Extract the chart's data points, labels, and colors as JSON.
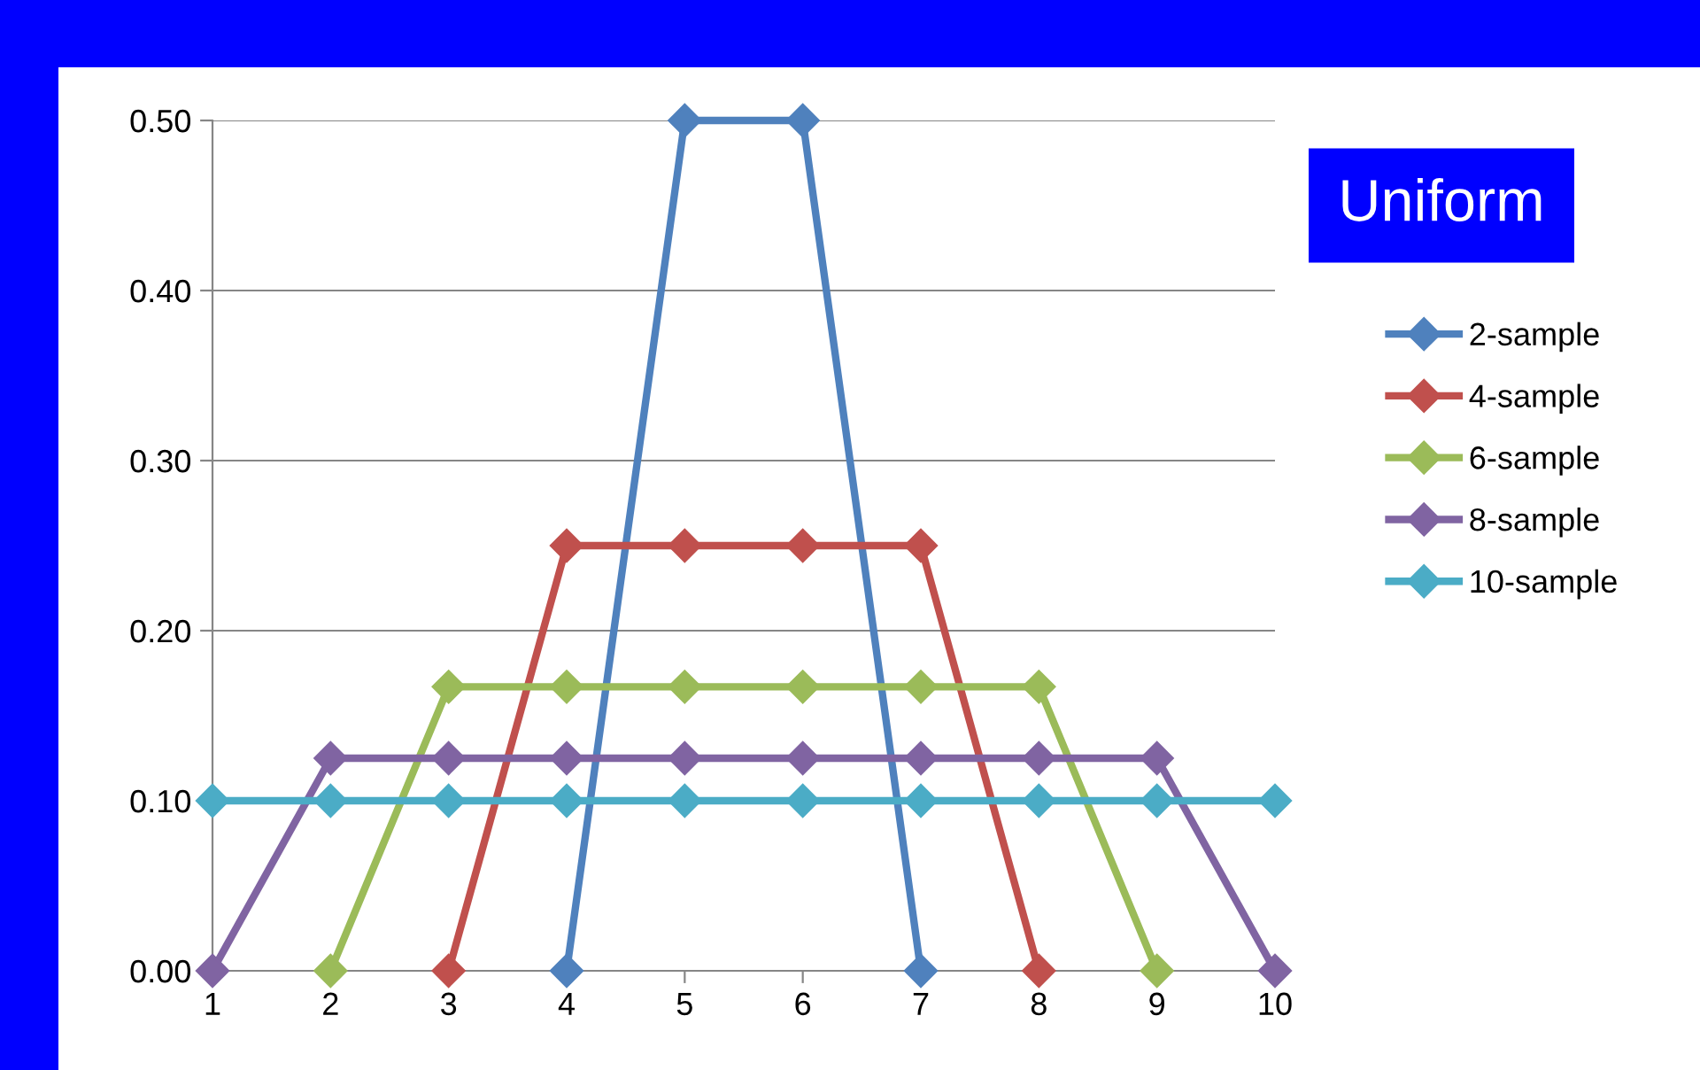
{
  "chart_data": {
    "type": "line",
    "categories": [
      "1",
      "2",
      "3",
      "4",
      "5",
      "6",
      "7",
      "8",
      "9",
      "10"
    ],
    "series": [
      {
        "name": "2-sample",
        "color": "#4f81bd",
        "values": [
          null,
          null,
          null,
          0,
          0.5,
          0.5,
          0,
          null,
          null,
          null
        ]
      },
      {
        "name": "4-sample",
        "color": "#c0504d",
        "values": [
          null,
          null,
          0,
          0.25,
          0.25,
          0.25,
          0.25,
          0,
          null,
          null
        ]
      },
      {
        "name": "6-sample",
        "color": "#9bbb59",
        "values": [
          null,
          0,
          0.167,
          0.167,
          0.167,
          0.167,
          0.167,
          0.167,
          0,
          null
        ]
      },
      {
        "name": "8-sample",
        "color": "#8064a2",
        "values": [
          0,
          0.125,
          0.125,
          0.125,
          0.125,
          0.125,
          0.125,
          0.125,
          0.125,
          0
        ]
      },
      {
        "name": "10-sample",
        "color": "#4bacc6",
        "values": [
          0.1,
          0.1,
          0.1,
          0.1,
          0.1,
          0.1,
          0.1,
          0.1,
          0.1,
          0.1
        ]
      }
    ],
    "ylim": [
      0,
      0.5
    ],
    "yticks": [
      {
        "value": 0,
        "label": "0.00"
      },
      {
        "value": 0.1,
        "label": "0.10"
      },
      {
        "value": 0.2,
        "label": "0.20"
      },
      {
        "value": 0.3,
        "label": "0.30"
      },
      {
        "value": 0.4,
        "label": "0.40"
      },
      {
        "value": 0.5,
        "label": "0.50"
      }
    ],
    "grid": "y",
    "legend": "right",
    "marker": "diamond",
    "line_style": "solid",
    "annotations": [
      "Uniform"
    ]
  }
}
